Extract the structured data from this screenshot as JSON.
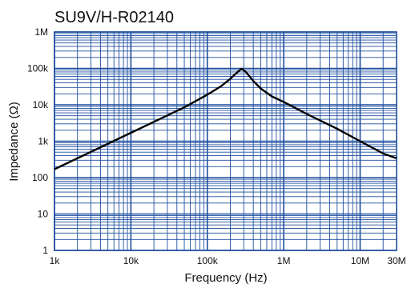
{
  "chart_data": {
    "type": "line",
    "title": "SU9V/H-R02140",
    "xlabel": "Frequency (Hz)",
    "ylabel": "Impedance (Ω)",
    "x_scale": "log",
    "y_scale": "log",
    "xlim": [
      1000,
      30000000
    ],
    "ylim": [
      1,
      1000000
    ],
    "x_ticks": [
      {
        "value": 1000,
        "label": "1k"
      },
      {
        "value": 10000,
        "label": "10k"
      },
      {
        "value": 100000,
        "label": "100k"
      },
      {
        "value": 1000000,
        "label": "1M"
      },
      {
        "value": 10000000,
        "label": "10M"
      },
      {
        "value": 30000000,
        "label": "30M"
      }
    ],
    "y_ticks": [
      {
        "value": 1,
        "label": "1"
      },
      {
        "value": 10,
        "label": "10"
      },
      {
        "value": 100,
        "label": "100"
      },
      {
        "value": 1000,
        "label": "1k"
      },
      {
        "value": 10000,
        "label": "10k"
      },
      {
        "value": 100000,
        "label": "100k"
      },
      {
        "value": 1000000,
        "label": "1M"
      }
    ],
    "grid": true,
    "colors": {
      "grid": "#1f4f9f",
      "curve": "#000000",
      "text": "#111111"
    },
    "series": [
      {
        "x": [
          1000,
          2000,
          5000,
          10000,
          20000,
          50000,
          100000,
          150000,
          200000,
          250000,
          280000,
          320000,
          400000,
          500000,
          700000,
          1000000,
          2000000,
          5000000,
          10000000,
          20000000,
          30000000
        ],
        "values": [
          170,
          340,
          850,
          1700,
          3400,
          8500,
          19000,
          32000,
          52000,
          80000,
          98000,
          80000,
          45000,
          28000,
          17000,
          12000,
          5600,
          2200,
          1000,
          460,
          340
        ]
      }
    ]
  }
}
